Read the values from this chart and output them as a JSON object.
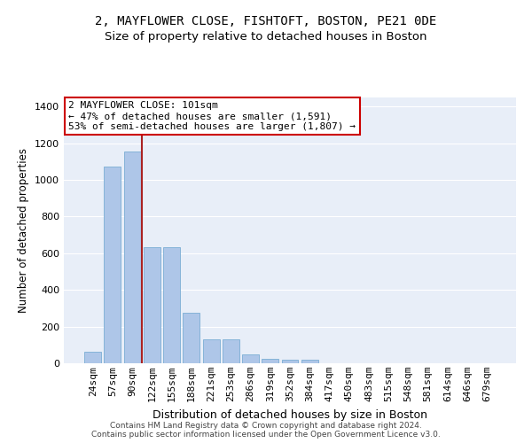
{
  "title1": "2, MAYFLOWER CLOSE, FISHTOFT, BOSTON, PE21 0DE",
  "title2": "Size of property relative to detached houses in Boston",
  "xlabel": "Distribution of detached houses by size in Boston",
  "ylabel": "Number of detached properties",
  "categories": [
    "24sqm",
    "57sqm",
    "90sqm",
    "122sqm",
    "155sqm",
    "188sqm",
    "221sqm",
    "253sqm",
    "286sqm",
    "319sqm",
    "352sqm",
    "384sqm",
    "417sqm",
    "450sqm",
    "483sqm",
    "515sqm",
    "548sqm",
    "581sqm",
    "614sqm",
    "646sqm",
    "679sqm"
  ],
  "values": [
    65,
    1075,
    1155,
    635,
    635,
    275,
    130,
    130,
    47,
    25,
    20,
    20,
    0,
    0,
    0,
    0,
    0,
    0,
    0,
    0,
    0
  ],
  "bar_color": "#aec6e8",
  "bar_edgecolor": "#7aadd4",
  "vline_x": 2.5,
  "vline_color": "#aa2222",
  "annotation_text": "2 MAYFLOWER CLOSE: 101sqm\n← 47% of detached houses are smaller (1,591)\n53% of semi-detached houses are larger (1,807) →",
  "annotation_box_color": "white",
  "annotation_box_edgecolor": "#cc0000",
  "ylim": [
    0,
    1450
  ],
  "yticks": [
    0,
    200,
    400,
    600,
    800,
    1000,
    1200,
    1400
  ],
  "background_color": "#e8eef8",
  "grid_color": "white",
  "footer": "Contains HM Land Registry data © Crown copyright and database right 2024.\nContains public sector information licensed under the Open Government Licence v3.0.",
  "title1_fontsize": 10,
  "title2_fontsize": 9.5,
  "xlabel_fontsize": 9,
  "ylabel_fontsize": 8.5,
  "tick_fontsize": 8,
  "annot_fontsize": 8,
  "footer_fontsize": 6.5
}
